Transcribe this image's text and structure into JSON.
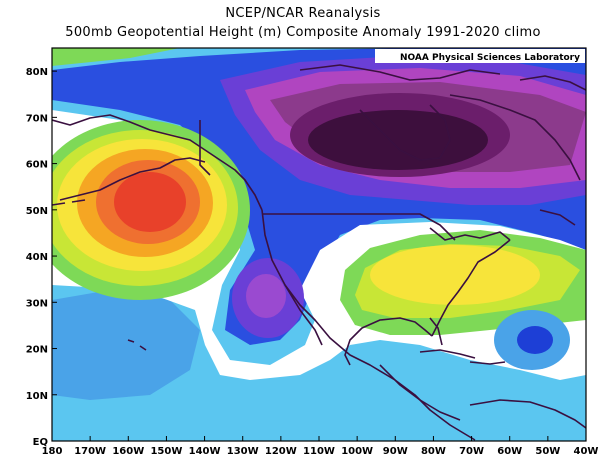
{
  "header": {
    "title": "NCEP/NCAR Reanalysis",
    "subtitle": "500mb Geopotential Height (m) Composite Anomaly 1991-2020 climo"
  },
  "credit": "NOAA Physical Sciences Laboratory",
  "map": {
    "projection": "equirectangular",
    "lon_range": [
      -180,
      -40
    ],
    "lat_range": [
      0,
      85
    ],
    "y_ticks": [
      "EQ",
      "10N",
      "20N",
      "30N",
      "40N",
      "50N",
      "60N",
      "70N",
      "80N"
    ],
    "x_ticks": [
      "180",
      "170W",
      "160W",
      "150W",
      "140W",
      "130W",
      "120W",
      "110W",
      "100W",
      "90W",
      "80W",
      "70W",
      "60W",
      "50W",
      "40W"
    ],
    "colors": {
      "strong_negative": "#3d0f3d",
      "very_negative": "#6b1e6b",
      "negative": "#8c3a8c",
      "moderate_negative": "#b045c0",
      "weak_negative": "#6a3fd6",
      "slight_negative": "#2a4fe0",
      "faint_negative": "#4aa3e8",
      "near_zero_neg": "#5bc6f0",
      "neutral": "#ffffff",
      "faint_positive": "#7ed957",
      "weak_positive": "#c8e636",
      "moderate_positive": "#f7e43a",
      "positive": "#f5a623",
      "strong_positive": "#e8412a",
      "coastline": "#3a1040"
    }
  }
}
